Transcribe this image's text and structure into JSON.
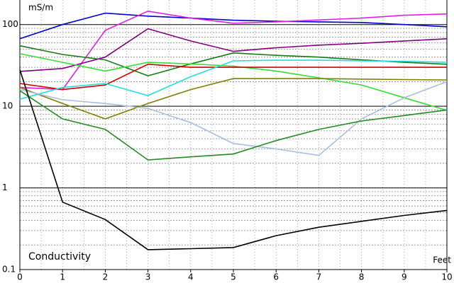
{
  "chart_data": {
    "type": "line",
    "title": "Conductivity",
    "y_label": "mS/m",
    "x_label": "Feet",
    "log_y": true,
    "grid": true,
    "xlim": [
      0,
      10
    ],
    "xticks": [
      0,
      1,
      2,
      3,
      4,
      5,
      6,
      7,
      8,
      9,
      10
    ],
    "ylim": [
      0.1,
      200
    ],
    "yticks": [
      0.1,
      1,
      10,
      100
    ],
    "x": [
      0,
      1,
      2,
      3,
      4,
      5,
      6,
      7,
      8,
      9,
      10
    ],
    "series": [
      {
        "color": "#0000cc",
        "values": [
          67,
          100,
          138,
          127,
          120,
          113,
          110,
          108,
          106,
          100,
          94
        ]
      },
      {
        "color": "#e020e0",
        "values": [
          17,
          16,
          85,
          146,
          120,
          104,
          108,
          114,
          120,
          130,
          135
        ]
      },
      {
        "color": "#800080",
        "values": [
          26.7,
          29,
          40,
          89,
          63,
          47,
          52,
          56,
          59,
          63,
          67
        ]
      },
      {
        "color": "#1a7a1a",
        "values": [
          55,
          43,
          37,
          23.6,
          33,
          45,
          42,
          40,
          37,
          34.5,
          32.7
        ]
      },
      {
        "color": "#33dd33",
        "values": [
          44,
          34.5,
          27,
          34.5,
          33,
          31,
          27,
          22.3,
          18.2,
          12.7,
          8.9
        ]
      },
      {
        "color": "#cc0000",
        "values": [
          19,
          16,
          18.2,
          32.7,
          30,
          30,
          30,
          30,
          30,
          30,
          30
        ]
      },
      {
        "color": "#22dddd",
        "values": [
          12.2,
          17,
          19,
          13.5,
          23,
          36,
          36.6,
          36.6,
          36,
          35.5,
          34.5
        ]
      },
      {
        "color": "#808000",
        "values": [
          17,
          10.8,
          7,
          10.8,
          16,
          21.8,
          21.8,
          21.8,
          21.5,
          21.2,
          21
        ]
      },
      {
        "color": "#a8bde0",
        "values": [
          16,
          12,
          10.8,
          9.4,
          6.3,
          3.5,
          3,
          2.5,
          7,
          12.7,
          20
        ]
      },
      {
        "color": "#228b22",
        "values": [
          15.5,
          7,
          5.2,
          2.2,
          2.4,
          2.6,
          3.8,
          5.2,
          6.6,
          7.7,
          9
        ]
      },
      {
        "color": "#000000",
        "values": [
          28,
          0.67,
          0.41,
          0.175,
          0.18,
          0.186,
          0.26,
          0.33,
          0.39,
          0.46,
          0.53
        ]
      }
    ]
  }
}
